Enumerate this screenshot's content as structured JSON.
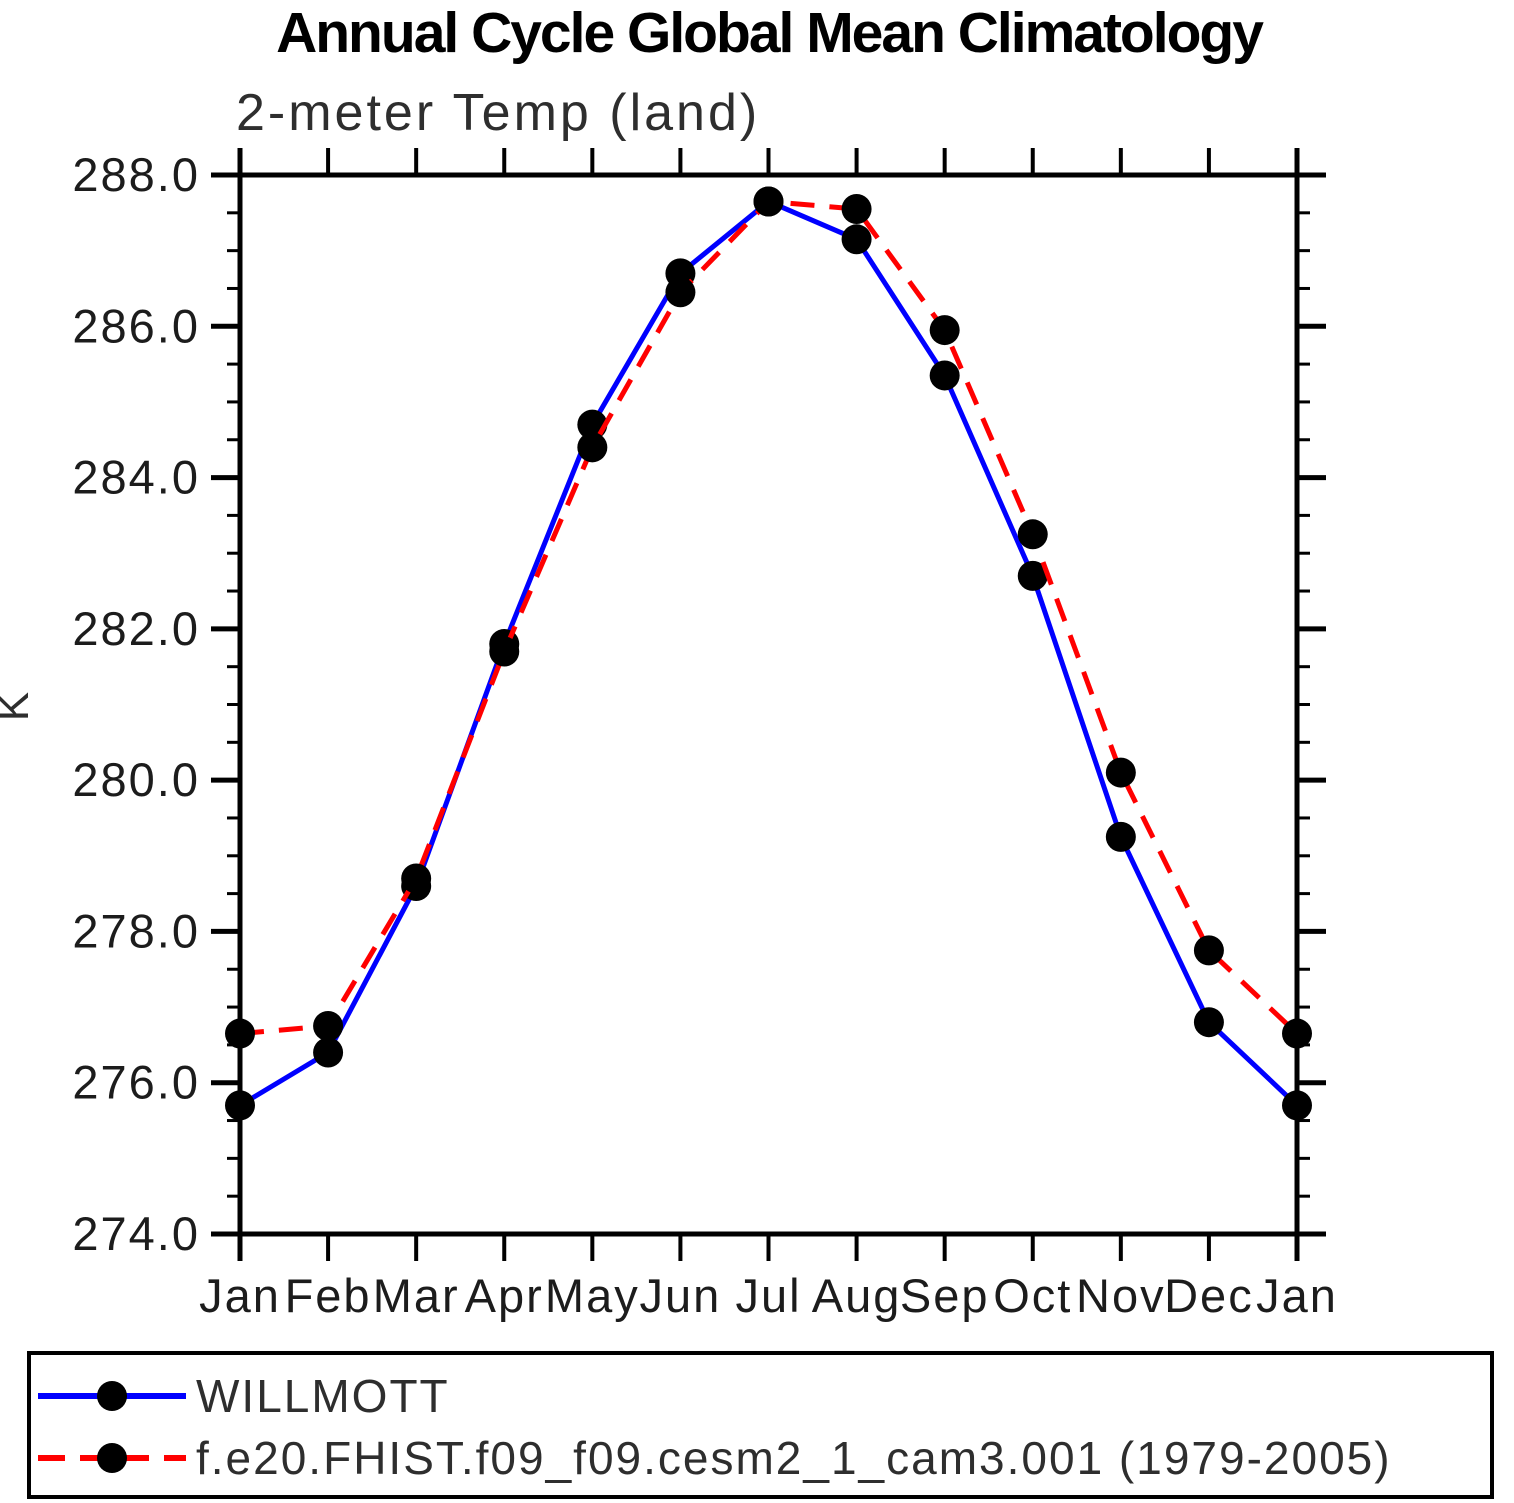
{
  "page_title": "Annual Cycle Global Mean Climatology",
  "chart_data": {
    "type": "line",
    "title": "Annual Cycle Global Mean Climatology",
    "subtitle": "2-meter Temp (land)",
    "ylabel": "K",
    "xlabel": "",
    "categories": [
      "Jan",
      "Feb",
      "Mar",
      "Apr",
      "May",
      "Jun",
      "Jul",
      "Aug",
      "Sep",
      "Oct",
      "Nov",
      "Dec",
      "Jan"
    ],
    "ylim": [
      274.0,
      288.0
    ],
    "ytick_interval": 2.0,
    "yminor_interval": 0.5,
    "yticks": [
      "288.0",
      "286.0",
      "284.0",
      "282.0",
      "280.0",
      "278.0",
      "276.0",
      "274.0"
    ],
    "grid": false,
    "legend_position": "bottom-left-box",
    "series": [
      {
        "name": "WILLMOTT",
        "color": "#0000ff",
        "style": "solid",
        "marker": "filled-circle",
        "marker_color": "#000000",
        "values": [
          275.7,
          276.4,
          278.6,
          281.8,
          284.7,
          286.7,
          287.65,
          287.15,
          285.35,
          282.7,
          279.25,
          276.8,
          275.7
        ]
      },
      {
        "name": "f.e20.FHIST.f09_f09.cesm2_1_cam3.001 (1979-2005)",
        "color": "#ff0000",
        "style": "dashed",
        "marker": "filled-circle",
        "marker_color": "#000000",
        "values": [
          276.65,
          276.75,
          278.7,
          281.7,
          284.4,
          286.45,
          287.65,
          287.55,
          285.95,
          283.25,
          280.1,
          277.75,
          276.65
        ]
      }
    ]
  }
}
